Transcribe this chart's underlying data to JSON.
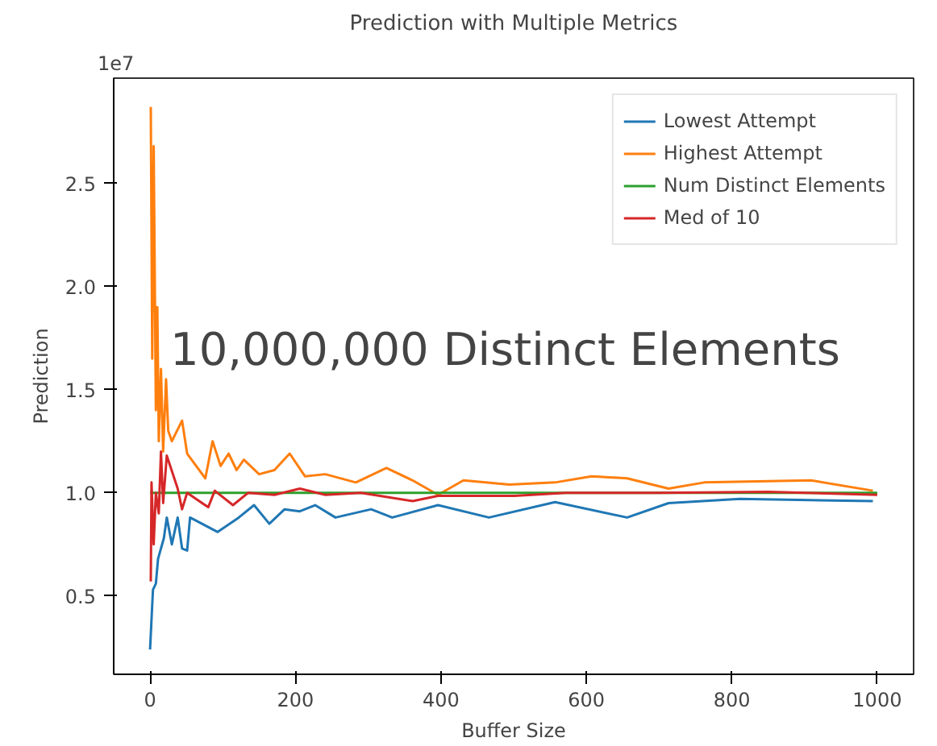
{
  "chart_data": {
    "type": "line",
    "title": "Prediction with Multiple Metrics",
    "xlabel": "Buffer Size",
    "ylabel": "Prediction",
    "annotations": [
      "1e7",
      "10,000,000 Distinct Elements"
    ],
    "xlim": [
      -50,
      1050
    ],
    "xticks": [
      0,
      200,
      400,
      600,
      800,
      1000
    ],
    "ylim": [
      0.12,
      3.01
    ],
    "yticks": [
      0.5,
      {
        "value": 1.0,
        "label": "1.0"
      },
      1.5,
      {
        "value": 2.0,
        "label": "2.0"
      },
      2.5
    ],
    "legend": "top right",
    "grid": false,
    "series": [
      {
        "name": "Lowest Attempt",
        "color": "#1f77b4",
        "x": [
          0,
          4,
          8,
          11,
          19,
          23,
          30,
          38,
          44,
          51,
          55,
          93,
          122,
          143,
          164,
          185,
          206,
          227,
          255,
          304,
          333,
          396,
          466,
          557,
          656,
          713,
          811,
          994
        ],
        "values": [
          0.24,
          0.53,
          0.56,
          0.68,
          0.78,
          0.88,
          0.75,
          0.88,
          0.73,
          0.72,
          0.88,
          0.81,
          0.88,
          0.94,
          0.85,
          0.92,
          0.91,
          0.94,
          0.88,
          0.92,
          0.88,
          0.94,
          0.88,
          0.955,
          0.88,
          0.95,
          0.97,
          0.96
        ]
      },
      {
        "name": "Highest Attempt",
        "color": "#ff7f0e",
        "x": [
          1,
          3,
          5,
          8,
          10,
          12,
          15,
          18,
          22,
          25,
          30,
          44,
          51,
          76,
          86,
          97,
          108,
          119,
          129,
          150,
          171,
          192,
          213,
          241,
          283,
          325,
          361,
          396,
          431,
          494,
          557,
          607,
          656,
          713,
          762,
          909,
          994
        ],
        "values": [
          2.87,
          1.65,
          2.68,
          1.4,
          1.9,
          1.25,
          1.6,
          1.2,
          1.55,
          1.3,
          1.25,
          1.35,
          1.19,
          1.07,
          1.25,
          1.13,
          1.19,
          1.11,
          1.16,
          1.09,
          1.11,
          1.19,
          1.08,
          1.09,
          1.05,
          1.12,
          1.06,
          0.99,
          1.06,
          1.04,
          1.05,
          1.08,
          1.07,
          1.02,
          1.05,
          1.06,
          1.01
        ]
      },
      {
        "name": "Num Distinct Elements",
        "color": "#2ca02c",
        "x": [
          0,
          1000
        ],
        "values": [
          1.0,
          1.0
        ]
      },
      {
        "name": "Med of 10",
        "color": "#d62728",
        "x": [
          1,
          2,
          5,
          8,
          12,
          15,
          18,
          23,
          38,
          44,
          51,
          80,
          89,
          114,
          135,
          171,
          206,
          241,
          290,
          361,
          396,
          501,
          572,
          700,
          850,
          1000
        ],
        "values": [
          0.57,
          1.05,
          0.75,
          1.0,
          0.9,
          1.2,
          0.95,
          1.18,
          1.02,
          0.92,
          1.0,
          0.93,
          1.01,
          0.94,
          1.0,
          0.99,
          1.02,
          0.99,
          1.0,
          0.96,
          0.985,
          0.985,
          1.0,
          1.0,
          1.005,
          0.99
        ]
      }
    ]
  }
}
